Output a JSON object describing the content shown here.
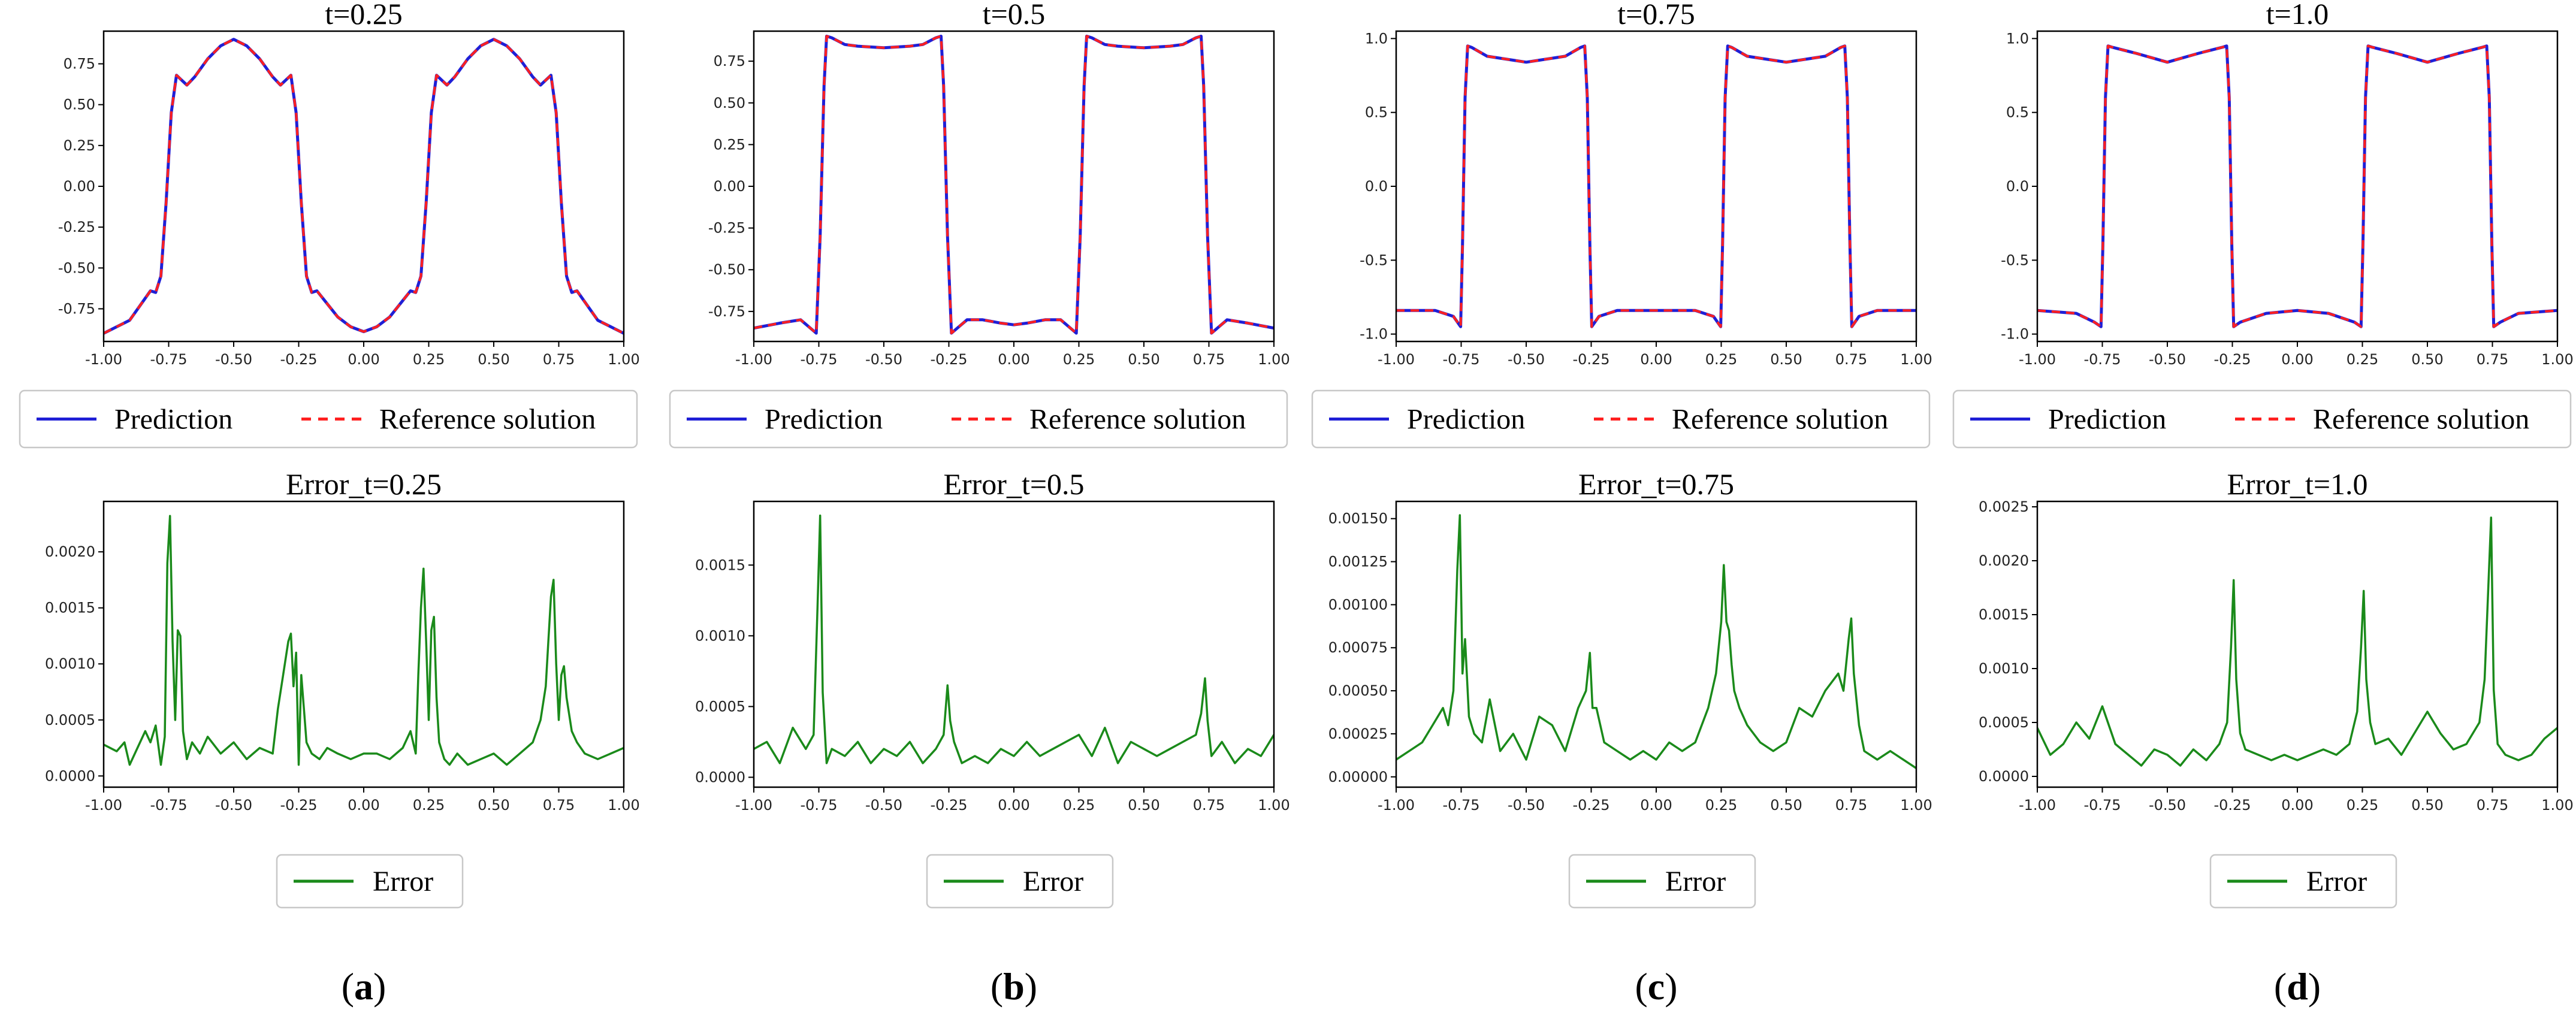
{
  "legend": {
    "prediction_label": "Prediction",
    "reference_label": "Reference solution",
    "error_label": "Error"
  },
  "colors": {
    "prediction": "#1f1fd6",
    "reference": "#ff2020",
    "error": "#1a8a1a"
  },
  "chart_data": [
    {
      "type": "line",
      "id": "sol_a",
      "title": "t=0.25",
      "xlim": [
        -1,
        1
      ],
      "ylim": [
        -0.95,
        0.95
      ],
      "xticks": [
        "-1.00",
        "-0.75",
        "-0.50",
        "-0.25",
        "0.00",
        "0.25",
        "0.50",
        "0.75",
        "1.00"
      ],
      "yticks": [
        "-0.75",
        "-0.50",
        "-0.25",
        "0.00",
        "0.25",
        "0.50",
        "0.75"
      ],
      "series": [
        {
          "name": "Prediction"
        },
        {
          "name": "Reference solution"
        }
      ],
      "x": [
        -1.0,
        -0.9,
        -0.82,
        -0.8,
        -0.78,
        -0.76,
        -0.74,
        -0.72,
        -0.7,
        -0.68,
        -0.65,
        -0.6,
        -0.55,
        -0.5,
        -0.45,
        -0.4,
        -0.35,
        -0.32,
        -0.3,
        -0.28,
        -0.26,
        -0.24,
        -0.22,
        -0.2,
        -0.18,
        -0.15,
        -0.1,
        -0.05,
        0.0,
        0.05,
        0.1,
        0.15,
        0.18,
        0.2,
        0.22,
        0.24,
        0.26,
        0.28,
        0.3,
        0.32,
        0.35,
        0.4,
        0.45,
        0.5,
        0.55,
        0.6,
        0.65,
        0.68,
        0.7,
        0.72,
        0.74,
        0.76,
        0.78,
        0.8,
        0.82,
        0.9,
        1.0
      ],
      "y": [
        -0.9,
        -0.82,
        -0.64,
        -0.65,
        -0.55,
        -0.1,
        0.45,
        0.68,
        0.65,
        0.62,
        0.67,
        0.78,
        0.86,
        0.9,
        0.86,
        0.78,
        0.67,
        0.62,
        0.65,
        0.68,
        0.45,
        -0.1,
        -0.55,
        -0.65,
        -0.64,
        -0.7,
        -0.8,
        -0.86,
        -0.89,
        -0.86,
        -0.8,
        -0.7,
        -0.64,
        -0.65,
        -0.55,
        -0.1,
        0.45,
        0.68,
        0.65,
        0.62,
        0.67,
        0.78,
        0.86,
        0.9,
        0.86,
        0.78,
        0.67,
        0.62,
        0.65,
        0.68,
        0.45,
        -0.1,
        -0.55,
        -0.65,
        -0.64,
        -0.82,
        -0.9
      ]
    },
    {
      "type": "line",
      "id": "sol_b",
      "title": "t=0.5",
      "xlim": [
        -1,
        1
      ],
      "ylim": [
        -0.93,
        0.93
      ],
      "xticks": [
        "-1.00",
        "-0.75",
        "-0.50",
        "-0.25",
        "0.00",
        "0.25",
        "0.50",
        "0.75",
        "1.00"
      ],
      "yticks": [
        "-0.75",
        "-0.50",
        "-0.25",
        "0.00",
        "0.25",
        "0.50",
        "0.75"
      ],
      "series": [
        {
          "name": "Prediction"
        },
        {
          "name": "Reference solution"
        }
      ],
      "x": [
        -1.0,
        -0.9,
        -0.82,
        -0.79,
        -0.76,
        -0.745,
        -0.73,
        -0.72,
        -0.7,
        -0.65,
        -0.6,
        -0.5,
        -0.4,
        -0.35,
        -0.3,
        -0.28,
        -0.27,
        -0.255,
        -0.24,
        -0.21,
        -0.18,
        -0.12,
        -0.05,
        0.0,
        0.05,
        0.12,
        0.18,
        0.21,
        0.24,
        0.255,
        0.27,
        0.28,
        0.3,
        0.35,
        0.4,
        0.5,
        0.6,
        0.65,
        0.7,
        0.72,
        0.73,
        0.745,
        0.76,
        0.79,
        0.82,
        0.9,
        1.0
      ],
      "y": [
        -0.85,
        -0.82,
        -0.8,
        -0.84,
        -0.88,
        -0.3,
        0.6,
        0.9,
        0.89,
        0.85,
        0.84,
        0.83,
        0.84,
        0.85,
        0.89,
        0.9,
        0.6,
        -0.3,
        -0.88,
        -0.84,
        -0.8,
        -0.8,
        -0.82,
        -0.83,
        -0.82,
        -0.8,
        -0.8,
        -0.84,
        -0.88,
        -0.3,
        0.6,
        0.9,
        0.89,
        0.85,
        0.84,
        0.83,
        0.84,
        0.85,
        0.89,
        0.9,
        0.6,
        -0.3,
        -0.88,
        -0.84,
        -0.8,
        -0.82,
        -0.85
      ]
    },
    {
      "type": "line",
      "id": "sol_c",
      "title": "t=0.75",
      "xlim": [
        -1,
        1
      ],
      "ylim": [
        -1.05,
        1.05
      ],
      "xticks": [
        "-1.00",
        "-0.75",
        "-0.50",
        "-0.25",
        "0.00",
        "0.25",
        "0.50",
        "0.75",
        "1.00"
      ],
      "yticks": [
        "-1.0",
        "-0.5",
        "0.0",
        "0.5",
        "1.0"
      ],
      "series": [
        {
          "name": "Prediction"
        },
        {
          "name": "Reference solution"
        }
      ],
      "x": [
        -1.0,
        -0.85,
        -0.78,
        -0.752,
        -0.745,
        -0.735,
        -0.725,
        -0.71,
        -0.65,
        -0.5,
        -0.35,
        -0.29,
        -0.275,
        -0.265,
        -0.255,
        -0.248,
        -0.22,
        -0.15,
        0.0,
        0.15,
        0.22,
        0.248,
        0.255,
        0.265,
        0.275,
        0.29,
        0.35,
        0.5,
        0.65,
        0.71,
        0.725,
        0.735,
        0.745,
        0.752,
        0.78,
        0.85,
        1.0
      ],
      "y": [
        -0.84,
        -0.84,
        -0.88,
        -0.95,
        -0.4,
        0.6,
        0.95,
        0.94,
        0.88,
        0.84,
        0.88,
        0.94,
        0.95,
        0.6,
        -0.4,
        -0.95,
        -0.88,
        -0.84,
        -0.84,
        -0.84,
        -0.88,
        -0.95,
        -0.4,
        0.6,
        0.95,
        0.94,
        0.88,
        0.84,
        0.88,
        0.94,
        0.95,
        0.6,
        -0.4,
        -0.95,
        -0.88,
        -0.84,
        -0.84
      ]
    },
    {
      "type": "line",
      "id": "sol_d",
      "title": "t=1.0",
      "xlim": [
        -1,
        1
      ],
      "ylim": [
        -1.05,
        1.05
      ],
      "xticks": [
        "-1.00",
        "-0.75",
        "-0.50",
        "-0.25",
        "0.00",
        "0.25",
        "0.50",
        "0.75",
        "1.00"
      ],
      "yticks": [
        "-1.0",
        "-0.5",
        "0.0",
        "0.5",
        "1.0"
      ],
      "series": [
        {
          "name": "Prediction"
        },
        {
          "name": "Reference solution"
        }
      ],
      "x": [
        -1.0,
        -0.85,
        -0.78,
        -0.755,
        -0.748,
        -0.738,
        -0.728,
        -0.71,
        -0.62,
        -0.5,
        -0.38,
        -0.29,
        -0.272,
        -0.262,
        -0.252,
        -0.245,
        -0.22,
        -0.12,
        0.0,
        0.12,
        0.22,
        0.245,
        0.252,
        0.262,
        0.272,
        0.29,
        0.38,
        0.5,
        0.62,
        0.71,
        0.728,
        0.738,
        0.748,
        0.755,
        0.78,
        0.85,
        1.0
      ],
      "y": [
        -0.84,
        -0.86,
        -0.92,
        -0.95,
        -0.4,
        0.6,
        0.95,
        0.94,
        0.9,
        0.84,
        0.9,
        0.94,
        0.95,
        0.6,
        -0.4,
        -0.95,
        -0.92,
        -0.86,
        -0.84,
        -0.86,
        -0.92,
        -0.95,
        -0.4,
        0.6,
        0.95,
        0.94,
        0.9,
        0.84,
        0.9,
        0.94,
        0.95,
        0.6,
        -0.4,
        -0.95,
        -0.92,
        -0.86,
        -0.84
      ]
    },
    {
      "type": "line",
      "id": "err_a",
      "title": "Error_t=0.25",
      "xlim": [
        -1,
        1
      ],
      "ylim": [
        -0.0001,
        0.00245
      ],
      "xticks": [
        "-1.00",
        "-0.75",
        "-0.50",
        "-0.25",
        "0.00",
        "0.25",
        "0.50",
        "0.75",
        "1.00"
      ],
      "yticks": [
        "0.0000",
        "0.0005",
        "0.0010",
        "0.0015",
        "0.0020"
      ],
      "series": [
        {
          "name": "Error"
        }
      ],
      "x": [
        -1.0,
        -0.95,
        -0.92,
        -0.9,
        -0.87,
        -0.84,
        -0.82,
        -0.8,
        -0.78,
        -0.765,
        -0.755,
        -0.745,
        -0.735,
        -0.725,
        -0.715,
        -0.705,
        -0.695,
        -0.68,
        -0.66,
        -0.63,
        -0.6,
        -0.55,
        -0.5,
        -0.45,
        -0.4,
        -0.35,
        -0.33,
        -0.31,
        -0.29,
        -0.28,
        -0.27,
        -0.26,
        -0.25,
        -0.24,
        -0.23,
        -0.22,
        -0.2,
        -0.17,
        -0.14,
        -0.1,
        -0.05,
        0.0,
        0.05,
        0.1,
        0.15,
        0.18,
        0.2,
        0.21,
        0.22,
        0.23,
        0.24,
        0.25,
        0.26,
        0.27,
        0.28,
        0.29,
        0.31,
        0.33,
        0.36,
        0.4,
        0.45,
        0.5,
        0.55,
        0.6,
        0.65,
        0.68,
        0.7,
        0.71,
        0.72,
        0.73,
        0.74,
        0.75,
        0.76,
        0.77,
        0.78,
        0.8,
        0.82,
        0.85,
        0.9,
        0.95,
        1.0
      ],
      "y": [
        0.00028,
        0.00022,
        0.0003,
        0.0001,
        0.00025,
        0.0004,
        0.0003,
        0.00045,
        0.0001,
        0.00035,
        0.0019,
        0.00232,
        0.0012,
        0.0005,
        0.0013,
        0.00125,
        0.0004,
        0.00015,
        0.0003,
        0.0002,
        0.00035,
        0.0002,
        0.0003,
        0.00015,
        0.00025,
        0.0002,
        0.0006,
        0.0009,
        0.0012,
        0.00127,
        0.0008,
        0.0011,
        0.0001,
        0.0009,
        0.0006,
        0.0003,
        0.0002,
        0.00015,
        0.00025,
        0.0002,
        0.00015,
        0.0002,
        0.0002,
        0.00015,
        0.00025,
        0.0004,
        0.0002,
        0.0009,
        0.0015,
        0.00185,
        0.0012,
        0.0005,
        0.0013,
        0.00142,
        0.0007,
        0.0003,
        0.00015,
        0.0001,
        0.0002,
        0.0001,
        0.00015,
        0.0002,
        0.0001,
        0.0002,
        0.0003,
        0.0005,
        0.0008,
        0.0012,
        0.0016,
        0.00175,
        0.001,
        0.0005,
        0.0009,
        0.00098,
        0.0007,
        0.0004,
        0.0003,
        0.0002,
        0.00015,
        0.0002,
        0.00025
      ]
    },
    {
      "type": "line",
      "id": "err_b",
      "title": "Error_t=0.5",
      "xlim": [
        -1,
        1
      ],
      "ylim": [
        -7e-05,
        0.00195
      ],
      "xticks": [
        "-1.00",
        "-0.75",
        "-0.50",
        "-0.25",
        "0.00",
        "0.25",
        "0.50",
        "0.75",
        "1.00"
      ],
      "yticks": [
        "0.0000",
        "0.0005",
        "0.0010",
        "0.0015"
      ],
      "series": [
        {
          "name": "Error"
        }
      ],
      "x": [
        -1.0,
        -0.95,
        -0.9,
        -0.85,
        -0.8,
        -0.77,
        -0.755,
        -0.745,
        -0.735,
        -0.72,
        -0.7,
        -0.65,
        -0.6,
        -0.55,
        -0.5,
        -0.45,
        -0.4,
        -0.35,
        -0.3,
        -0.27,
        -0.255,
        -0.245,
        -0.23,
        -0.2,
        -0.15,
        -0.1,
        -0.05,
        0.0,
        0.05,
        0.1,
        0.15,
        0.2,
        0.25,
        0.3,
        0.35,
        0.4,
        0.45,
        0.5,
        0.55,
        0.6,
        0.65,
        0.7,
        0.72,
        0.735,
        0.745,
        0.76,
        0.8,
        0.85,
        0.9,
        0.95,
        1.0
      ],
      "y": [
        0.0002,
        0.00025,
        0.0001,
        0.00035,
        0.0002,
        0.0003,
        0.0012,
        0.00185,
        0.0006,
        0.0001,
        0.0002,
        0.00015,
        0.00025,
        0.0001,
        0.0002,
        0.00015,
        0.00025,
        0.0001,
        0.0002,
        0.0003,
        0.00065,
        0.0004,
        0.00025,
        0.0001,
        0.00015,
        0.0001,
        0.0002,
        0.00015,
        0.00025,
        0.00015,
        0.0002,
        0.00025,
        0.0003,
        0.00015,
        0.00035,
        0.0001,
        0.00025,
        0.0002,
        0.00015,
        0.0002,
        0.00025,
        0.0003,
        0.00045,
        0.0007,
        0.0004,
        0.00015,
        0.00025,
        0.0001,
        0.0002,
        0.00015,
        0.0003
      ]
    },
    {
      "type": "line",
      "id": "err_c",
      "title": "Error_t=0.75",
      "xlim": [
        -1,
        1
      ],
      "ylim": [
        -6e-05,
        0.0016
      ],
      "xticks": [
        "-1.00",
        "-0.75",
        "-0.50",
        "-0.25",
        "0.00",
        "0.25",
        "0.50",
        "0.75",
        "1.00"
      ],
      "yticks": [
        "0.00000",
        "0.00025",
        "0.00050",
        "0.00075",
        "0.00100",
        "0.00125",
        "0.00150"
      ],
      "series": [
        {
          "name": "Error"
        }
      ],
      "x": [
        -1.0,
        -0.95,
        -0.9,
        -0.86,
        -0.82,
        -0.8,
        -0.78,
        -0.765,
        -0.755,
        -0.745,
        -0.735,
        -0.72,
        -0.7,
        -0.67,
        -0.64,
        -0.6,
        -0.55,
        -0.5,
        -0.45,
        -0.4,
        -0.35,
        -0.3,
        -0.27,
        -0.255,
        -0.245,
        -0.23,
        -0.2,
        -0.15,
        -0.1,
        -0.05,
        0.0,
        0.05,
        0.1,
        0.15,
        0.2,
        0.23,
        0.25,
        0.26,
        0.27,
        0.28,
        0.29,
        0.3,
        0.32,
        0.35,
        0.4,
        0.45,
        0.5,
        0.55,
        0.6,
        0.65,
        0.7,
        0.72,
        0.74,
        0.75,
        0.76,
        0.78,
        0.8,
        0.85,
        0.9,
        0.95,
        1.0
      ],
      "y": [
        0.0001,
        0.00015,
        0.0002,
        0.0003,
        0.0004,
        0.0003,
        0.0005,
        0.0012,
        0.00152,
        0.0006,
        0.0008,
        0.00035,
        0.00025,
        0.0002,
        0.00045,
        0.00015,
        0.00025,
        0.0001,
        0.00035,
        0.0003,
        0.00015,
        0.0004,
        0.0005,
        0.00072,
        0.0004,
        0.0004,
        0.0002,
        0.00015,
        0.0001,
        0.00015,
        0.0001,
        0.0002,
        0.00015,
        0.0002,
        0.0004,
        0.0006,
        0.0009,
        0.00123,
        0.0009,
        0.00085,
        0.00065,
        0.0005,
        0.0004,
        0.0003,
        0.0002,
        0.00015,
        0.0002,
        0.0004,
        0.00035,
        0.0005,
        0.0006,
        0.0005,
        0.0008,
        0.00092,
        0.0006,
        0.0003,
        0.00015,
        0.0001,
        0.00015,
        0.0001,
        5e-05
      ]
    },
    {
      "type": "line",
      "id": "err_d",
      "title": "Error_t=1.0",
      "xlim": [
        -1,
        1
      ],
      "ylim": [
        -0.0001,
        0.00255
      ],
      "xticks": [
        "-1.00",
        "-0.75",
        "-0.50",
        "-0.25",
        "0.00",
        "0.25",
        "0.50",
        "0.75",
        "1.00"
      ],
      "yticks": [
        "0.0000",
        "0.0005",
        "0.0010",
        "0.0015",
        "0.0020",
        "0.0025"
      ],
      "series": [
        {
          "name": "Error"
        }
      ],
      "x": [
        -1.0,
        -0.95,
        -0.9,
        -0.85,
        -0.8,
        -0.75,
        -0.7,
        -0.65,
        -0.6,
        -0.55,
        -0.5,
        -0.45,
        -0.4,
        -0.35,
        -0.3,
        -0.27,
        -0.255,
        -0.245,
        -0.235,
        -0.22,
        -0.2,
        -0.15,
        -0.1,
        -0.05,
        0.0,
        0.05,
        0.1,
        0.15,
        0.2,
        0.23,
        0.245,
        0.255,
        0.265,
        0.28,
        0.3,
        0.35,
        0.4,
        0.45,
        0.5,
        0.55,
        0.6,
        0.65,
        0.7,
        0.72,
        0.735,
        0.745,
        0.755,
        0.77,
        0.8,
        0.85,
        0.9,
        0.95,
        1.0
      ],
      "y": [
        0.00045,
        0.0002,
        0.0003,
        0.0005,
        0.00035,
        0.00065,
        0.0003,
        0.0002,
        0.0001,
        0.00025,
        0.0002,
        0.0001,
        0.00025,
        0.00015,
        0.0003,
        0.0005,
        0.0012,
        0.00182,
        0.0009,
        0.0004,
        0.00025,
        0.0002,
        0.00015,
        0.0002,
        0.00015,
        0.0002,
        0.00025,
        0.0002,
        0.0003,
        0.0006,
        0.0012,
        0.00172,
        0.0009,
        0.0005,
        0.0003,
        0.00035,
        0.0002,
        0.0004,
        0.0006,
        0.0004,
        0.00025,
        0.0003,
        0.0005,
        0.0009,
        0.0018,
        0.0024,
        0.0008,
        0.0003,
        0.0002,
        0.00015,
        0.0002,
        0.00035,
        0.00045
      ]
    }
  ],
  "panels": [
    {
      "label": "a"
    },
    {
      "label": "b"
    },
    {
      "label": "c"
    },
    {
      "label": "d"
    }
  ]
}
